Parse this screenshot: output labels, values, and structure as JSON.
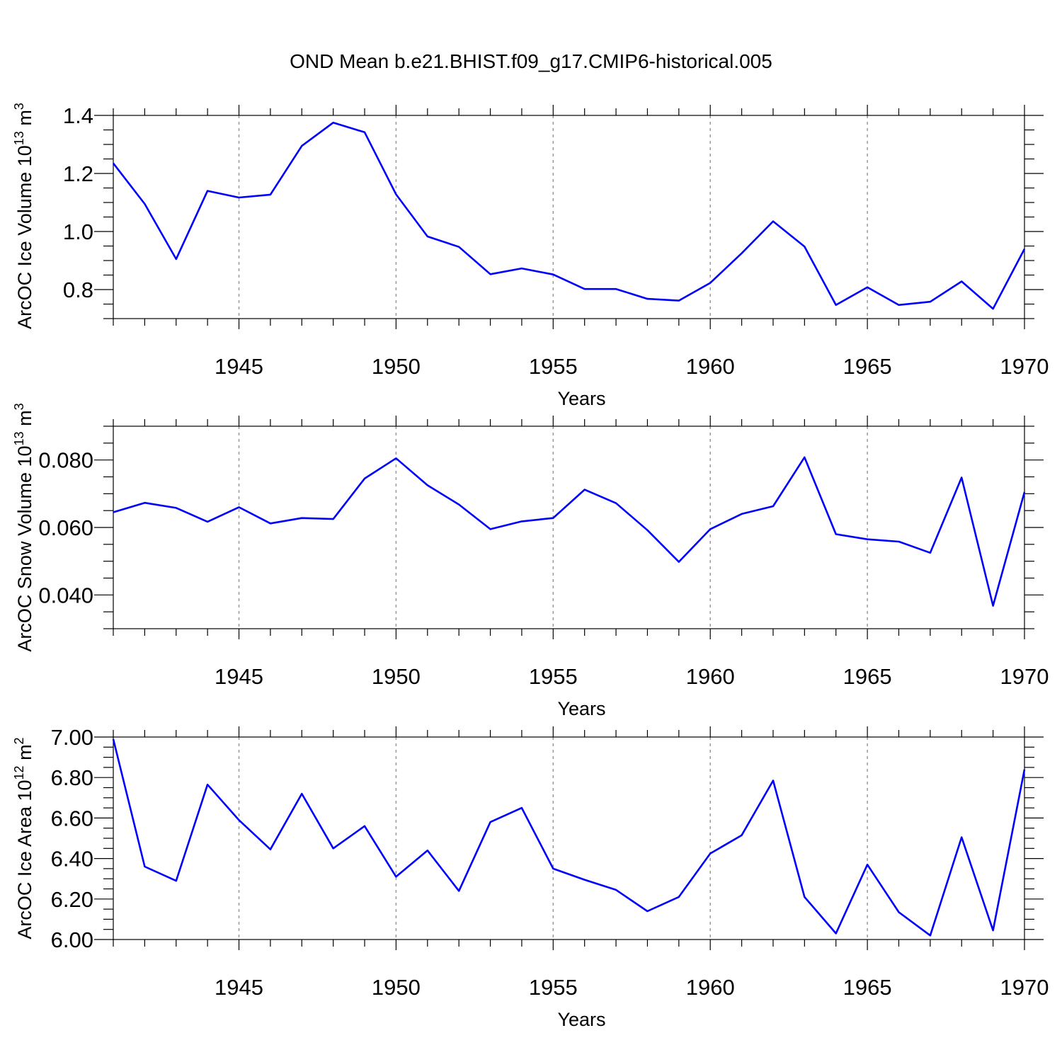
{
  "title": "OND Mean b.e21.BHIST.f09_g17.CMIP6-historical.005",
  "colors": {
    "series": "#0000ff",
    "axes": "#000000",
    "grid": "#999999",
    "background": "#ffffff"
  },
  "chart_data": [
    {
      "type": "line",
      "xlabel": "Years",
      "ylabel": "ArcOC Ice Volume 10",
      "ylabel_exp": "13",
      "ylabel_unit": " m",
      "ylabel_unit_exp": "3",
      "xlim": [
        1941,
        1970
      ],
      "ylim": [
        0.7,
        1.4
      ],
      "xticks": [
        1945,
        1950,
        1955,
        1960,
        1965,
        1970
      ],
      "xtick_labels": [
        "1945",
        "1950",
        "1955",
        "1960",
        "1965",
        "1970"
      ],
      "yticks": [
        0.8,
        1.0,
        1.2,
        1.4
      ],
      "ytick_labels": [
        "0.8",
        "1.0",
        "1.2",
        "1.4"
      ],
      "y_minor_step": 0.05,
      "grid": "dashed vertical at major x ticks",
      "x": [
        1941,
        1942,
        1943,
        1944,
        1945,
        1946,
        1947,
        1948,
        1949,
        1950,
        1951,
        1952,
        1953,
        1954,
        1955,
        1956,
        1957,
        1958,
        1959,
        1960,
        1961,
        1962,
        1963,
        1964,
        1965,
        1966,
        1967,
        1968,
        1969,
        1970
      ],
      "values": [
        1.235,
        1.095,
        0.905,
        1.14,
        1.117,
        1.127,
        1.295,
        1.375,
        1.342,
        1.128,
        0.983,
        0.947,
        0.853,
        0.873,
        0.852,
        0.802,
        0.802,
        0.768,
        0.762,
        0.823,
        0.925,
        1.035,
        0.948,
        0.747,
        0.808,
        0.747,
        0.758,
        0.828,
        0.734,
        0.94
      ]
    },
    {
      "type": "line",
      "xlabel": "Years",
      "ylabel": "ArcOC Snow Volume 10",
      "ylabel_exp": "13",
      "ylabel_unit": " m",
      "ylabel_unit_exp": "3",
      "xlim": [
        1941,
        1970
      ],
      "ylim": [
        0.03,
        0.09
      ],
      "xticks": [
        1945,
        1950,
        1955,
        1960,
        1965,
        1970
      ],
      "xtick_labels": [
        "1945",
        "1950",
        "1955",
        "1960",
        "1965",
        "1970"
      ],
      "yticks": [
        0.04,
        0.06,
        0.08
      ],
      "ytick_labels": [
        "0.040",
        "0.060",
        "0.080"
      ],
      "y_minor_step": 0.005,
      "grid": "dashed vertical at major x ticks",
      "x": [
        1941,
        1942,
        1943,
        1944,
        1945,
        1946,
        1947,
        1948,
        1949,
        1950,
        1951,
        1952,
        1953,
        1954,
        1955,
        1956,
        1957,
        1958,
        1959,
        1960,
        1961,
        1962,
        1963,
        1964,
        1965,
        1966,
        1967,
        1968,
        1969,
        1970
      ],
      "values": [
        0.0645,
        0.0673,
        0.0658,
        0.0617,
        0.066,
        0.0612,
        0.0628,
        0.0625,
        0.0745,
        0.0805,
        0.0725,
        0.0668,
        0.0595,
        0.0618,
        0.0628,
        0.0712,
        0.0672,
        0.0592,
        0.0498,
        0.0595,
        0.064,
        0.0663,
        0.0808,
        0.058,
        0.0565,
        0.0558,
        0.0525,
        0.0748,
        0.0368,
        0.0705
      ]
    },
    {
      "type": "line",
      "xlabel": "Years",
      "ylabel": "ArcOC Ice Area 10",
      "ylabel_exp": "12",
      "ylabel_unit": " m",
      "ylabel_unit_exp": "2",
      "xlim": [
        1941,
        1970
      ],
      "ylim": [
        6.0,
        7.0
      ],
      "xticks": [
        1945,
        1950,
        1955,
        1960,
        1965,
        1970
      ],
      "xtick_labels": [
        "1945",
        "1950",
        "1955",
        "1960",
        "1965",
        "1970"
      ],
      "yticks": [
        6.0,
        6.2,
        6.4,
        6.6,
        6.8,
        7.0
      ],
      "ytick_labels": [
        "6.00",
        "6.20",
        "6.40",
        "6.60",
        "6.80",
        "7.00"
      ],
      "y_minor_step": 0.05,
      "grid": "dashed vertical at major x ticks",
      "x": [
        1941,
        1942,
        1943,
        1944,
        1945,
        1946,
        1947,
        1948,
        1949,
        1950,
        1951,
        1952,
        1953,
        1954,
        1955,
        1956,
        1957,
        1958,
        1959,
        1960,
        1961,
        1962,
        1963,
        1964,
        1965,
        1966,
        1967,
        1968,
        1969,
        1970
      ],
      "values": [
        6.99,
        6.36,
        6.29,
        6.765,
        6.59,
        6.445,
        6.72,
        6.45,
        6.56,
        6.31,
        6.44,
        6.24,
        6.58,
        6.65,
        6.35,
        6.295,
        6.245,
        6.14,
        6.21,
        6.425,
        6.515,
        6.785,
        6.21,
        6.03,
        6.37,
        6.135,
        6.02,
        6.505,
        6.045,
        6.84
      ]
    }
  ]
}
